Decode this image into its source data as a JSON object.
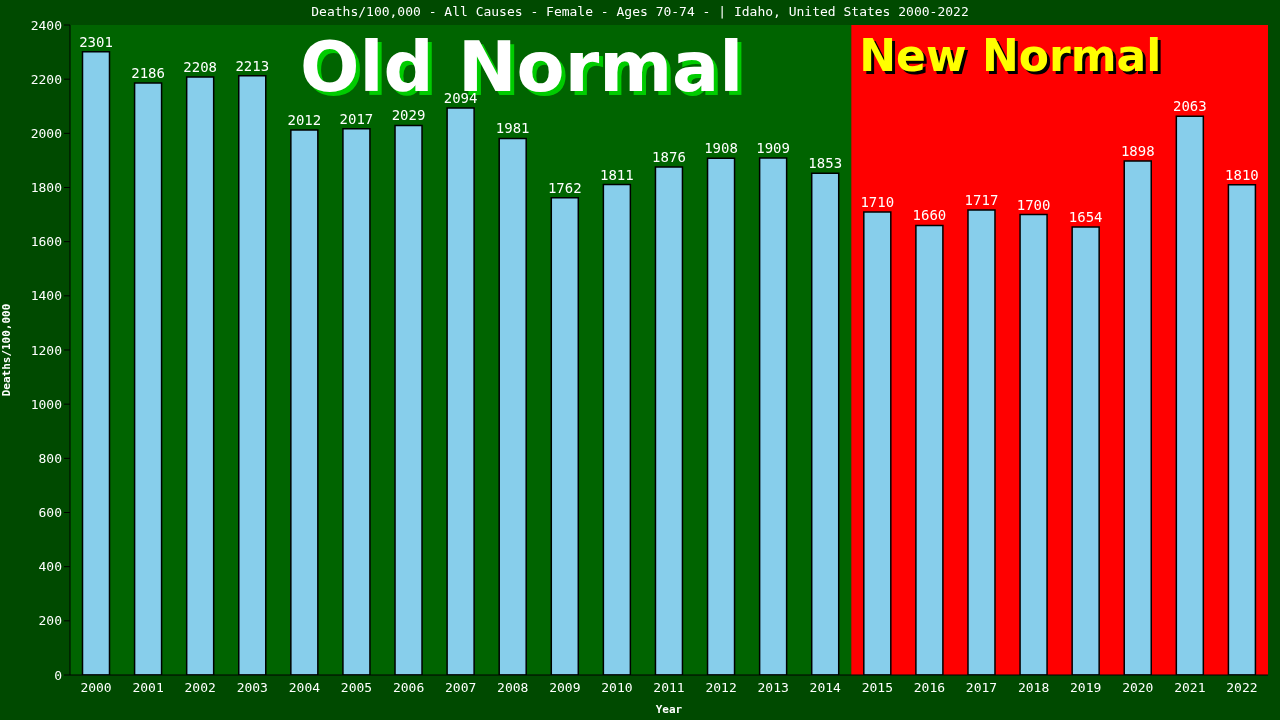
{
  "chart_data": {
    "type": "bar",
    "title": "Deaths/100,000 - All Causes - Female - Ages 70-74 -  | Idaho, United States 2000-2022",
    "xlabel": "Year",
    "ylabel": "Deaths/100,000",
    "categories": [
      "2000",
      "2001",
      "2002",
      "2003",
      "2004",
      "2005",
      "2006",
      "2007",
      "2008",
      "2009",
      "2010",
      "2011",
      "2012",
      "2013",
      "2014",
      "2015",
      "2016",
      "2017",
      "2018",
      "2019",
      "2020",
      "2021",
      "2022"
    ],
    "values": [
      2301,
      2186,
      2208,
      2213,
      2012,
      2017,
      2029,
      2094,
      1981,
      1762,
      1811,
      1876,
      1908,
      1909,
      1853,
      1710,
      1660,
      1717,
      1700,
      1654,
      1898,
      2063,
      1810
    ],
    "color": "#87ceeb",
    "data_labels": true,
    "ylim": [
      0,
      2400
    ],
    "yticks": [
      0,
      200,
      400,
      600,
      800,
      1000,
      1200,
      1400,
      1600,
      1800,
      2000,
      2200,
      2400
    ],
    "grid": false,
    "legend": false,
    "bands": [
      {
        "axis": "x",
        "from": "2000",
        "to": "2014",
        "label": "Old Normal",
        "color": "#006400"
      },
      {
        "axis": "x",
        "from": "2015",
        "to": "2022",
        "label": "New Normal",
        "color": "#ff0000"
      }
    ]
  }
}
